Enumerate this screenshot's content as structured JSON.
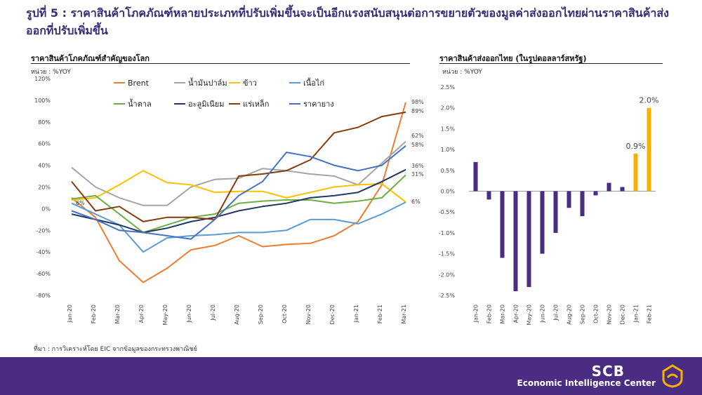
{
  "header": {
    "title": "รูปที่ 5 : ราคาสินค้าโภคภัณฑ์หลายประเภทที่ปรับเพิ่มขึ้นจะเป็นอีกแรงสนับสนุนต่อการขยายตัวของมูลค่าส่งออกไทยผ่านราคาสินค้าส่งออกที่ปรับเพิ่มขึ้น"
  },
  "left_panel": {
    "title": "ราคาสินค้าโภคภัณฑ์สำคัญของโลก",
    "unit": "หน่วย : %YOY"
  },
  "right_panel": {
    "title": "ราคาสินค้าส่งออกไทย (ในรูปดอลลาร์สหรัฐ)",
    "unit": "หน่วย : %YOY"
  },
  "source": "ที่มา : การวิเคราะห์โดย EIC จากข้อมูลของกระทรวงพาณิชย์",
  "footer": {
    "brand": "SCB",
    "subtitle": "Economic Intelligence Center",
    "logo_icon": "scb-logo-icon",
    "bg_color": "#4a2c82"
  },
  "chart_data": [
    {
      "type": "line",
      "title": "ราคาสินค้าโภคภัณฑ์สำคัญของโลก",
      "ylabel": "หน่วย : %YOY",
      "categories": [
        "Jan-20",
        "Feb-20",
        "Mar-20",
        "Apr-20",
        "May-20",
        "Jun-20",
        "Jul-20",
        "Aug-20",
        "Sep-20",
        "Oct-20",
        "Nov-20",
        "Dec-20",
        "Jan-21",
        "Feb-21",
        "Mar-21"
      ],
      "ylim": [
        -80,
        120
      ],
      "yticks": [
        "-80%",
        "-60%",
        "-40%",
        "-20%",
        "0%",
        "20%",
        "40%",
        "60%",
        "80%",
        "100%",
        "120%"
      ],
      "grid": false,
      "legend": "top-left, inside",
      "series": [
        {
          "name": "Brent",
          "color": "#ed7d31",
          "values": [
            10,
            -8,
            -48,
            -68,
            -55,
            -38,
            -34,
            -25,
            -35,
            -33,
            -32,
            -25,
            -12,
            22,
            98
          ]
        },
        {
          "name": "น้ำมันปาล์ม",
          "color": "#a5a5a5",
          "values": [
            38,
            20,
            10,
            3,
            3,
            20,
            27,
            28,
            37,
            35,
            32,
            30,
            22,
            42,
            62
          ]
        },
        {
          "name": "ข้าว",
          "color": "#ffc000",
          "values": [
            8,
            10,
            22,
            35,
            24,
            22,
            15,
            16,
            16,
            10,
            15,
            20,
            22,
            23,
            6
          ]
        },
        {
          "name": "เนื้อไก่",
          "color": "#5b9bd5",
          "values": [
            5,
            -5,
            -15,
            -40,
            -27,
            -25,
            -24,
            -22,
            -22,
            -20,
            -10,
            -10,
            -14,
            -5,
            6
          ]
        },
        {
          "name": "น้ำตาล",
          "color": "#70ad47",
          "values": [
            9,
            12,
            -5,
            -22,
            -15,
            -8,
            -5,
            5,
            7,
            8,
            8,
            5,
            7,
            10,
            31
          ]
        },
        {
          "name": "อะลูมิเนียม",
          "color": "#1f3864",
          "values": [
            -5,
            -10,
            -15,
            -22,
            -18,
            -12,
            -8,
            -2,
            2,
            5,
            10,
            12,
            15,
            25,
            36
          ]
        },
        {
          "name": "แร่เหล็ก",
          "color": "#843c0c",
          "values": [
            25,
            -2,
            2,
            -12,
            -8,
            -8,
            -10,
            30,
            32,
            35,
            45,
            70,
            75,
            85,
            89
          ]
        },
        {
          "name": "ราคายาง",
          "color": "#4472c4",
          "values": [
            -2,
            -10,
            -20,
            -22,
            -25,
            -28,
            -10,
            12,
            25,
            52,
            48,
            40,
            35,
            40,
            58
          ]
        }
      ],
      "end_labels": [
        "98%",
        "89%",
        "62%",
        "58%",
        "36%",
        "31%",
        "6%"
      ],
      "start_label": "6%"
    },
    {
      "type": "bar",
      "title": "ราคาสินค้าส่งออกไทย (ในรูปดอลลาร์สหรัฐ)",
      "ylabel": "หน่วย : %YOY",
      "categories": [
        "Jan-20",
        "Feb-20",
        "Mar-20",
        "Apr-20",
        "May-20",
        "Jun-20",
        "Jul-20",
        "Aug-20",
        "Sep-20",
        "Oct-20",
        "Nov-20",
        "Dec-20",
        "Jan-21",
        "Feb-21"
      ],
      "values": [
        0.7,
        -0.2,
        -1.6,
        -2.4,
        -2.3,
        -1.5,
        -1.0,
        -0.4,
        -0.6,
        -0.1,
        0.2,
        0.1,
        0.9,
        2.0
      ],
      "colors": [
        "#4a2c82",
        "#4a2c82",
        "#4a2c82",
        "#4a2c82",
        "#4a2c82",
        "#4a2c82",
        "#4a2c82",
        "#4a2c82",
        "#4a2c82",
        "#4a2c82",
        "#4a2c82",
        "#4a2c82",
        "#f5b301",
        "#f5b301"
      ],
      "data_labels": [
        "",
        "",
        "",
        "",
        "",
        "",
        "",
        "",
        "",
        "",
        "",
        "",
        "0.9%",
        "2.0%"
      ],
      "ylim": [
        -2.5,
        2.5
      ],
      "yticks": [
        "-2.5%",
        "-2.0%",
        "-1.5%",
        "-1.0%",
        "-0.5%",
        "0.0%",
        "0.5%",
        "1.0%",
        "1.5%",
        "2.0%",
        "2.5%"
      ],
      "grid": false
    }
  ]
}
